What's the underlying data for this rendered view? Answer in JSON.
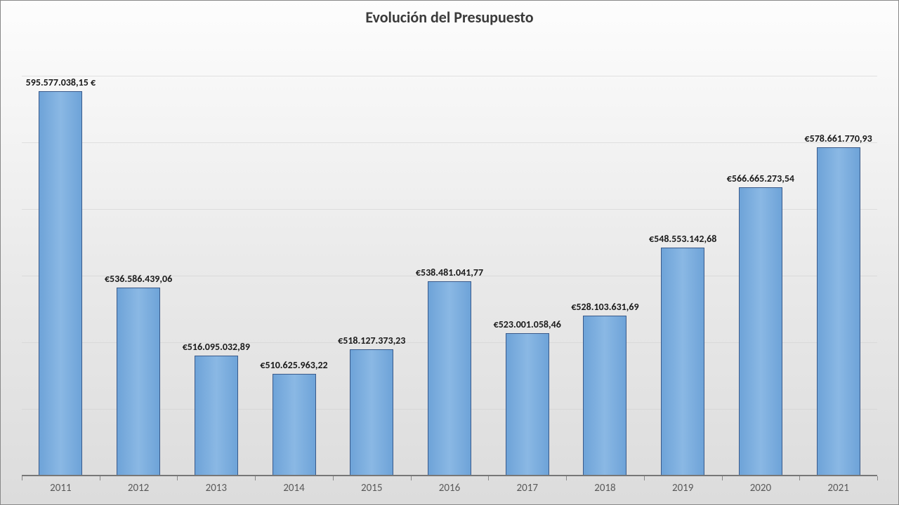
{
  "chart": {
    "type": "bar",
    "title": "Evolución del Presupuesto",
    "title_fontsize": 22,
    "title_color": "#3a3a3a",
    "background_gradient_top": "#fdfdfd",
    "background_gradient_mid": "#e9e9e9",
    "background_gradient_bottom": "#dcdcdc",
    "border_color": "#888888",
    "bar_fill": "#6ea3d8",
    "bar_border": "#3a5a8a",
    "grid_color": "#d0d0d0",
    "baseline_color": "#777777",
    "x_label_color": "#595959",
    "x_label_fontsize": 15,
    "data_label_fontsize": 14,
    "data_label_color": "#1a1a1a",
    "y_min": 480000000,
    "y_max": 610000000,
    "y_gridlines": [
      500000000,
      520000000,
      540000000,
      560000000,
      580000000,
      600000000
    ],
    "bar_width_ratio": 0.56,
    "categories": [
      "2011",
      "2012",
      "2013",
      "2014",
      "2015",
      "2016",
      "2017",
      "2018",
      "2019",
      "2020",
      "2021"
    ],
    "values": [
      595577038.15,
      536586439.06,
      516095032.89,
      510625963.22,
      518127373.23,
      538481041.77,
      523001058.46,
      528103631.69,
      548553142.68,
      566665273.54,
      578661770.93
    ],
    "value_labels": [
      "595.577.038,15 €",
      "€536.586.439,06",
      "€516.095.032,89",
      "€510.625.963,22",
      "€518.127.373,23",
      "€538.481.041,77",
      "€523.001.058,46",
      "€528.103.631,69",
      "€548.553.142,68",
      "€566.665.273,54",
      "€578.661.770,93"
    ]
  }
}
